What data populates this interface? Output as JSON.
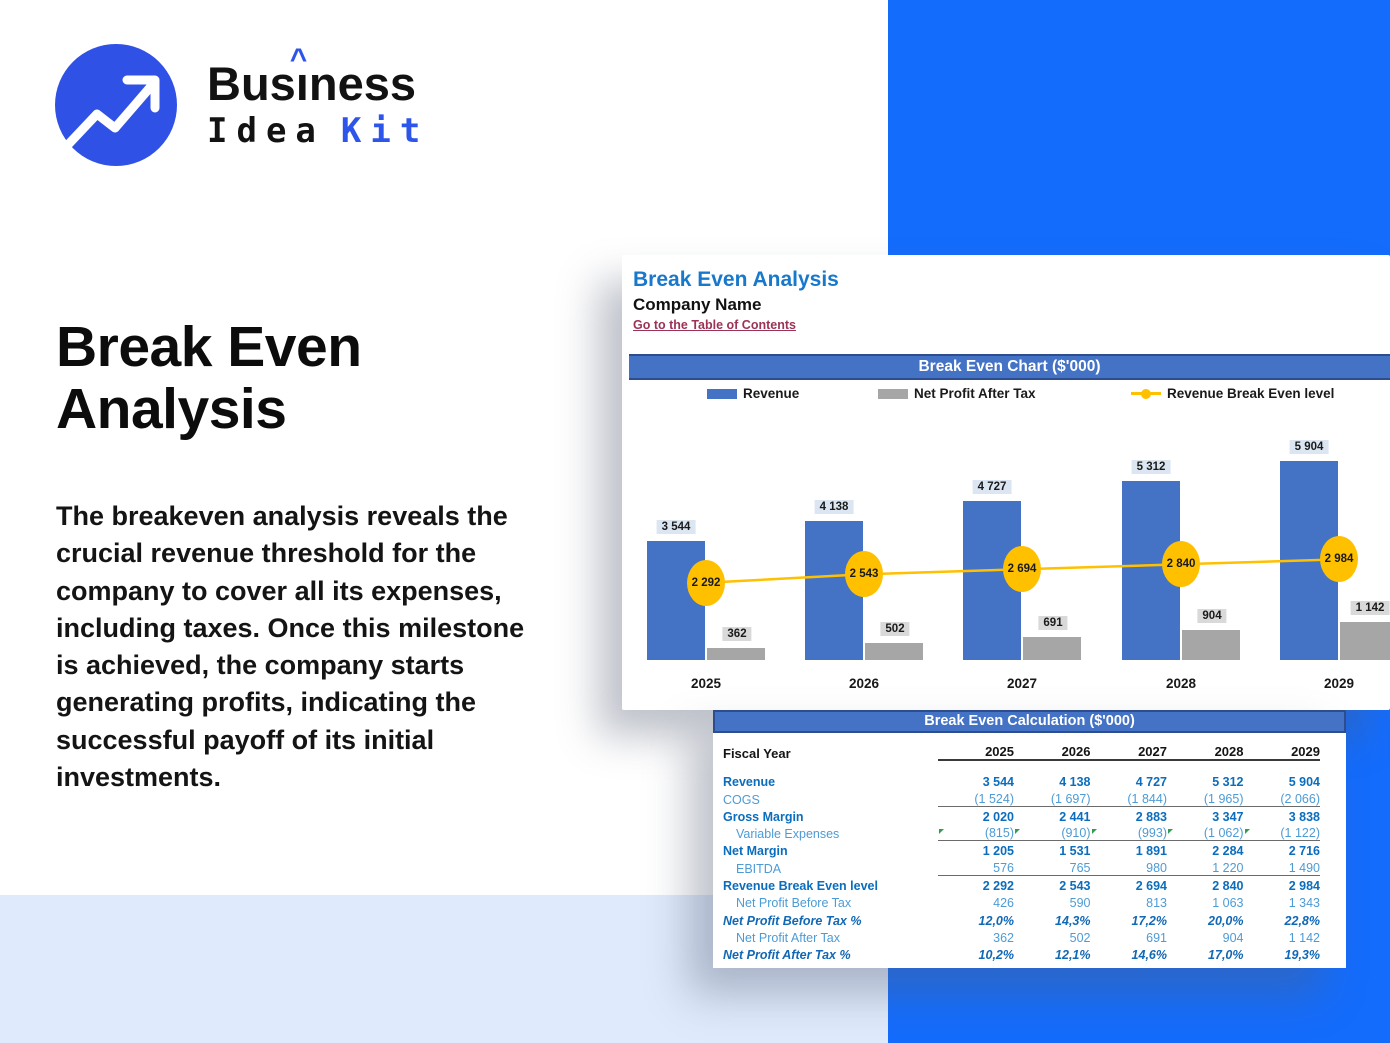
{
  "brand": {
    "word1_pre": "Bus",
    "word1_i": "ı",
    "caret": "^",
    "word1_post": "ness",
    "word2": "Idea",
    "word3": "Kit"
  },
  "hero": {
    "title": "Break Even Analysis",
    "description": "The breakeven analysis reveals the crucial revenue threshold for the company to cover all its expenses, including taxes. Once this milestone is achieved, the company starts generating profits, indicating the successful payoff of its initial investments."
  },
  "sheet": {
    "title": "Break Even Analysis",
    "company": "Company Name",
    "toc_link": "Go to the Table of Contents",
    "chart_header": "Break Even Chart ($'000)",
    "table_header": "Break Even Calculation ($'000)"
  },
  "colors": {
    "panel_blue": "#146CFC",
    "band_light_blue": "#DFEAFC",
    "brand_accent_blue": "#2E55EA",
    "excel_header_blue": "#4472C4",
    "revenue_bar_blue": "#4472C4",
    "net_profit_gray": "#A6A6A6",
    "break_even_yellow": "#FFC000",
    "sheet_title_blue": "#1878CC",
    "toc_link_maroon": "#9B3258",
    "table_strong_blue": "#0B6DBD",
    "table_light_blue": "#4D9BD5"
  },
  "chart_data": {
    "type": "bar",
    "subtype": "combo-bar-line",
    "title": "Break Even Chart ($'000)",
    "categories": [
      "2025",
      "2026",
      "2027",
      "2028",
      "2029"
    ],
    "series": [
      {
        "name": "Revenue",
        "kind": "bar",
        "color": "#4472C4",
        "values": [
          3544,
          4138,
          4727,
          5312,
          5904
        ],
        "labels": [
          "3 544",
          "4 138",
          "4 727",
          "5 312",
          "5 904"
        ]
      },
      {
        "name": "Net Profit After Tax",
        "kind": "bar",
        "color": "#A6A6A6",
        "values": [
          362,
          502,
          691,
          904,
          1142
        ],
        "labels": [
          "362",
          "502",
          "691",
          "904",
          "1 142"
        ]
      },
      {
        "name": "Revenue Break Even level",
        "kind": "line",
        "color": "#FFC000",
        "values": [
          2292,
          2543,
          2694,
          2840,
          2984
        ],
        "labels": [
          "2 292",
          "2 543",
          "2 694",
          "2 840",
          "2 984"
        ]
      }
    ],
    "ylim": [
      0,
      6200
    ],
    "grid": false,
    "legend_position": "top",
    "data_labels": true
  },
  "table": {
    "header_row": {
      "label": "Fiscal Year",
      "values": [
        "2025",
        "2026",
        "2027",
        "2028",
        "2029"
      ]
    },
    "rows": [
      {
        "label": "Revenue",
        "values": [
          "3 544",
          "4 138",
          "4 727",
          "5 312",
          "5 904"
        ],
        "emphasis": "strong",
        "indent": false,
        "rule_below": false,
        "flags": false
      },
      {
        "label": "COGS",
        "values": [
          "(1 524)",
          "(1 697)",
          "(1 844)",
          "(1 965)",
          "(2 066)"
        ],
        "emphasis": "normal",
        "indent": false,
        "rule_below": true,
        "flags": false
      },
      {
        "label": "Gross Margin",
        "values": [
          "2 020",
          "2 441",
          "2 883",
          "3 347",
          "3 838"
        ],
        "emphasis": "strong",
        "indent": false,
        "rule_below": false,
        "flags": false
      },
      {
        "label": "Variable Expenses",
        "values": [
          "(815)",
          "(910)",
          "(993)",
          "(1 062)",
          "(1 122)"
        ],
        "emphasis": "normal",
        "indent": true,
        "rule_below": true,
        "flags": true
      },
      {
        "label": "Net Margin",
        "values": [
          "1 205",
          "1 531",
          "1 891",
          "2 284",
          "2 716"
        ],
        "emphasis": "strong",
        "indent": false,
        "rule_below": false,
        "flags": false
      },
      {
        "label": "EBITDA",
        "values": [
          "576",
          "765",
          "980",
          "1 220",
          "1 490"
        ],
        "emphasis": "normal",
        "indent": true,
        "rule_below": true,
        "flags": false
      },
      {
        "label": "Revenue Break Even level",
        "values": [
          "2 292",
          "2 543",
          "2 694",
          "2 840",
          "2 984"
        ],
        "emphasis": "strong",
        "indent": false,
        "rule_below": false,
        "flags": false
      },
      {
        "label": "Net Profit Before Tax",
        "values": [
          "426",
          "590",
          "813",
          "1 063",
          "1 343"
        ],
        "emphasis": "normal",
        "indent": true,
        "rule_below": false,
        "flags": false
      },
      {
        "label": "Net Profit Before Tax %",
        "values": [
          "12,0%",
          "14,3%",
          "17,2%",
          "20,0%",
          "22,8%"
        ],
        "emphasis": "percent",
        "indent": false,
        "rule_below": false,
        "flags": false
      },
      {
        "label": "Net Profit After Tax",
        "values": [
          "362",
          "502",
          "691",
          "904",
          "1 142"
        ],
        "emphasis": "normal",
        "indent": true,
        "rule_below": false,
        "flags": false
      },
      {
        "label": "Net Profit After Tax %",
        "values": [
          "10,2%",
          "12,1%",
          "14,6%",
          "17,0%",
          "19,3%"
        ],
        "emphasis": "percent",
        "indent": false,
        "rule_below": false,
        "flags": false
      }
    ]
  }
}
